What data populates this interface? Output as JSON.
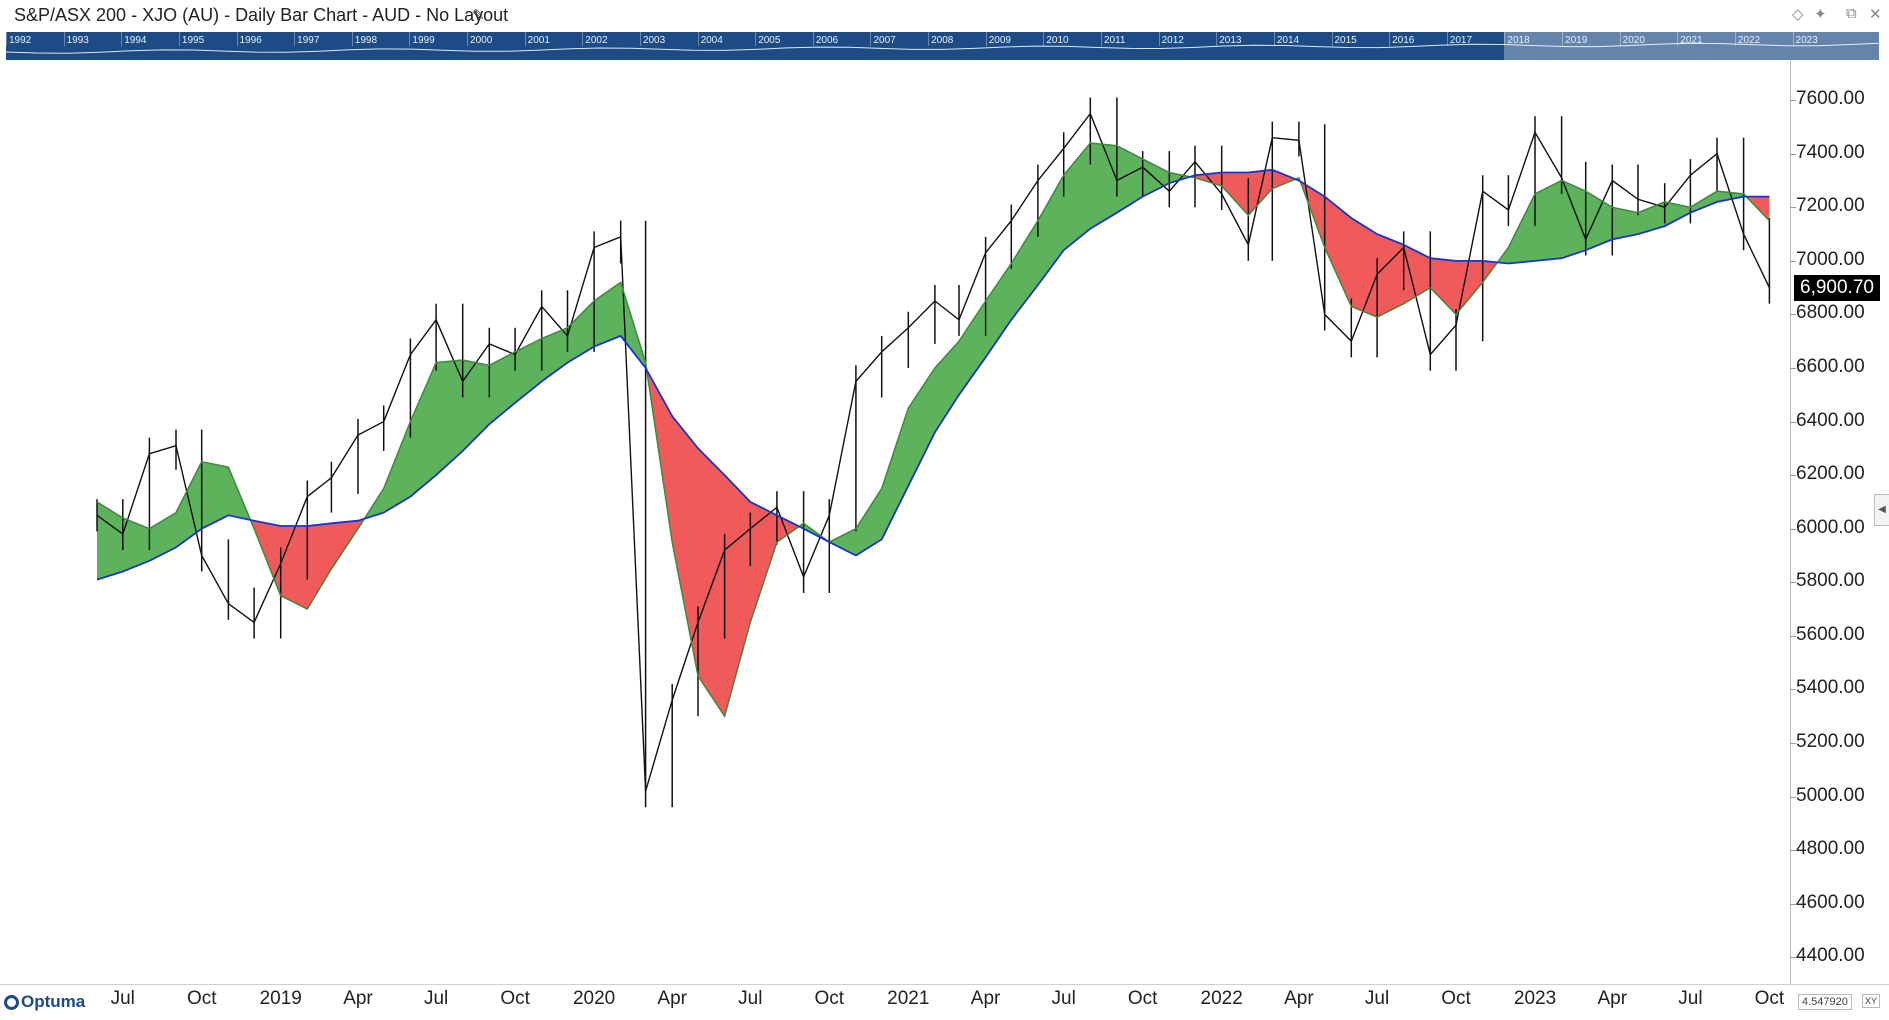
{
  "window": {
    "title": "S&P/ASX 200 - XJO (AU) - Daily Bar Chart - AUD - No Layout",
    "controls": [
      "diamond-icon",
      "pin-icon",
      "restore-icon",
      "close-icon"
    ]
  },
  "navigator": {
    "years": [
      "1992",
      "1993",
      "1994",
      "1995",
      "1996",
      "1997",
      "1998",
      "1999",
      "2000",
      "2001",
      "2002",
      "2003",
      "2004",
      "2005",
      "2006",
      "2007",
      "2008",
      "2009",
      "2010",
      "2011",
      "2012",
      "2013",
      "2014",
      "2015",
      "2016",
      "2017",
      "2018",
      "2019",
      "2020",
      "2021",
      "2022",
      "2023"
    ],
    "visible_from": "2018",
    "visible_to": "2023"
  },
  "branding": {
    "logo": "Optuma"
  },
  "readouts": {
    "scale": "4.547920",
    "xy": "XY"
  },
  "colors": {
    "price_bars": "#111111",
    "long_ma": "#1f2fd0",
    "short_ma": "#3c8a3c",
    "fill_above": "#5cb35c",
    "fill_below": "#f05a5a",
    "last_price_bg": "#000000",
    "navigator_bg": "#1c4b85"
  },
  "chart_data": {
    "type": "line",
    "title": "S&P/ASX 200 - XJO (AU) - Daily Bar Chart - AUD",
    "x_axis_labels": [
      "Jul",
      "Oct",
      "2019",
      "Apr",
      "Jul",
      "Oct",
      "2020",
      "Apr",
      "Jul",
      "Oct",
      "2021",
      "Apr",
      "Jul",
      "Oct",
      "2022",
      "Apr",
      "Jul",
      "Oct",
      "2023",
      "Apr",
      "Jul",
      "Oct"
    ],
    "y_axis_labels": [
      "7600.00",
      "7400.00",
      "7200.00",
      "7000.00",
      "6800.00",
      "6600.00",
      "6400.00",
      "6200.00",
      "6000.00",
      "5800.00",
      "5600.00",
      "5400.00",
      "5200.00",
      "5000.00",
      "4800.00",
      "4600.00",
      "4400.00"
    ],
    "ylim": [
      4300,
      7750
    ],
    "x": [
      "2018-06-01",
      "2018-07-01",
      "2018-08-01",
      "2018-09-01",
      "2018-10-01",
      "2018-11-01",
      "2018-12-01",
      "2019-01-01",
      "2019-02-01",
      "2019-03-01",
      "2019-04-01",
      "2019-05-01",
      "2019-06-01",
      "2019-07-01",
      "2019-08-01",
      "2019-09-01",
      "2019-10-01",
      "2019-11-01",
      "2019-12-01",
      "2020-01-01",
      "2020-02-01",
      "2020-03-01",
      "2020-04-01",
      "2020-05-01",
      "2020-06-01",
      "2020-07-01",
      "2020-08-01",
      "2020-09-01",
      "2020-10-01",
      "2020-11-01",
      "2020-12-01",
      "2021-01-01",
      "2021-02-01",
      "2021-03-01",
      "2021-04-01",
      "2021-05-01",
      "2021-06-01",
      "2021-07-01",
      "2021-08-01",
      "2021-09-01",
      "2021-10-01",
      "2021-11-01",
      "2021-12-01",
      "2022-01-01",
      "2022-02-01",
      "2022-03-01",
      "2022-04-01",
      "2022-05-01",
      "2022-06-01",
      "2022-07-01",
      "2022-08-01",
      "2022-09-01",
      "2022-10-01",
      "2022-11-01",
      "2022-12-01",
      "2023-01-01",
      "2023-02-01",
      "2023-03-01",
      "2023-04-01",
      "2023-05-01",
      "2023-06-01",
      "2023-07-01",
      "2023-08-01",
      "2023-09-01",
      "2023-10-01"
    ],
    "series": [
      {
        "name": "",
        "role": "price",
        "values": [
          6050,
          5980,
          6280,
          6310,
          5900,
          5720,
          5650,
          5870,
          6120,
          6190,
          6350,
          6400,
          6650,
          6780,
          6550,
          6690,
          6650,
          6830,
          6720,
          7050,
          7090,
          5020,
          5360,
          5650,
          5920,
          6000,
          6080,
          5820,
          6050,
          6550,
          6660,
          6750,
          6850,
          6780,
          7030,
          7150,
          7300,
          7420,
          7550,
          7300,
          7350,
          7260,
          7370,
          7250,
          7060,
          7460,
          7450,
          6800,
          6700,
          6950,
          7050,
          6650,
          6760,
          7260,
          7190,
          7480,
          7310,
          7080,
          7300,
          7230,
          7200,
          7320,
          7400,
          7100,
          6900
        ]
      },
      {
        "name": "",
        "role": "short_ma",
        "values": [
          6100,
          6040,
          6000,
          6060,
          6250,
          6230,
          6000,
          5750,
          5700,
          5850,
          6000,
          6150,
          6400,
          6620,
          6630,
          6610,
          6660,
          6710,
          6750,
          6850,
          6920,
          6620,
          5950,
          5450,
          5300,
          5650,
          5950,
          6020,
          5950,
          6000,
          6150,
          6450,
          6600,
          6700,
          6850,
          6990,
          7150,
          7320,
          7440,
          7430,
          7380,
          7330,
          7310,
          7280,
          7170,
          7270,
          7310,
          7050,
          6830,
          6790,
          6840,
          6900,
          6800,
          6920,
          7050,
          7250,
          7300,
          7260,
          7200,
          7180,
          7220,
          7200,
          7260,
          7250,
          7150
        ]
      },
      {
        "name": "",
        "role": "long_ma",
        "values": [
          5810,
          5840,
          5880,
          5930,
          6000,
          6050,
          6030,
          6010,
          6010,
          6020,
          6030,
          6060,
          6120,
          6200,
          6290,
          6390,
          6470,
          6550,
          6620,
          6680,
          6720,
          6600,
          6420,
          6300,
          6200,
          6100,
          6050,
          6000,
          5950,
          5900,
          5960,
          6160,
          6360,
          6500,
          6640,
          6780,
          6910,
          7040,
          7120,
          7180,
          7240,
          7290,
          7320,
          7330,
          7330,
          7340,
          7300,
          7240,
          7160,
          7100,
          7060,
          7010,
          7000,
          7000,
          6990,
          7000,
          7010,
          7040,
          7080,
          7100,
          7130,
          7180,
          7220,
          7240,
          7240
        ]
      }
    ],
    "last_value": "6,900.70",
    "grid": false,
    "legend": "none"
  }
}
